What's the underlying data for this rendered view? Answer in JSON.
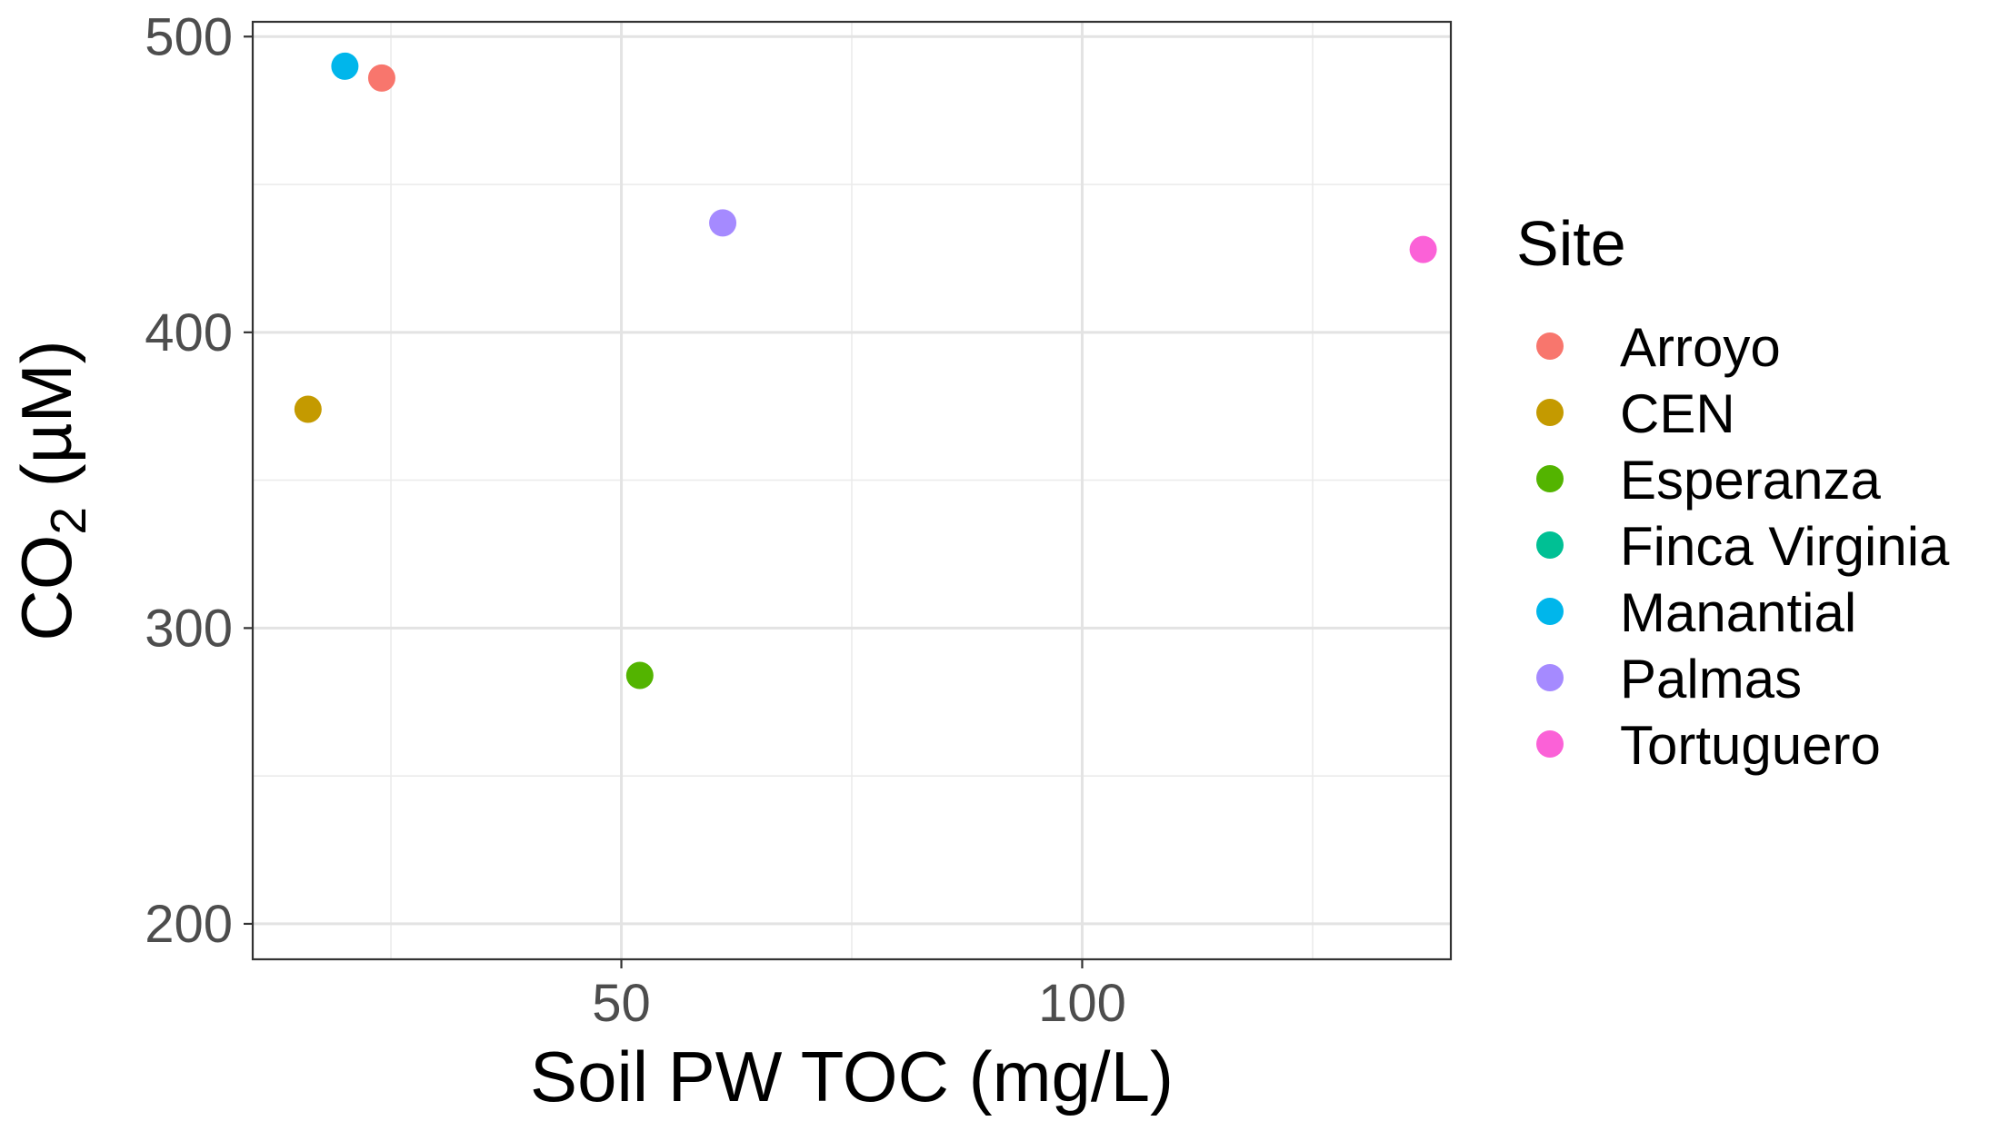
{
  "chart_data": {
    "type": "scatter",
    "title": "",
    "xlabel": "Soil PW TOC (mg/L)",
    "ylabel": {
      "main": "CO",
      "subscript": "2",
      "unit": " (µM)"
    },
    "xlim": [
      10,
      140
    ],
    "ylim": [
      188,
      505
    ],
    "x_ticks": [
      50,
      100
    ],
    "x_minor": [
      25,
      75,
      125
    ],
    "y_ticks": [
      200,
      300,
      400,
      500
    ],
    "y_minor": [
      250,
      350,
      450
    ],
    "grid": true,
    "legend": {
      "title": "Site",
      "position": "right"
    },
    "series": [
      {
        "name": "Arroyo",
        "color": "#F8766D",
        "points": [
          {
            "x": 24,
            "y": 486
          }
        ]
      },
      {
        "name": "CEN",
        "color": "#C49A00",
        "points": [
          {
            "x": 16,
            "y": 374
          }
        ]
      },
      {
        "name": "Esperanza",
        "color": "#53B400",
        "points": [
          {
            "x": 52,
            "y": 284
          }
        ]
      },
      {
        "name": "Finca Virginia",
        "color": "#00C094",
        "points": []
      },
      {
        "name": "Manantial",
        "color": "#00B6EB",
        "points": [
          {
            "x": 20,
            "y": 490
          }
        ]
      },
      {
        "name": "Palmas",
        "color": "#A58AFF",
        "points": [
          {
            "x": 61,
            "y": 437
          }
        ]
      },
      {
        "name": "Tortuguero",
        "color": "#FB61D7",
        "points": [
          {
            "x": 137,
            "y": 428
          }
        ]
      }
    ]
  }
}
